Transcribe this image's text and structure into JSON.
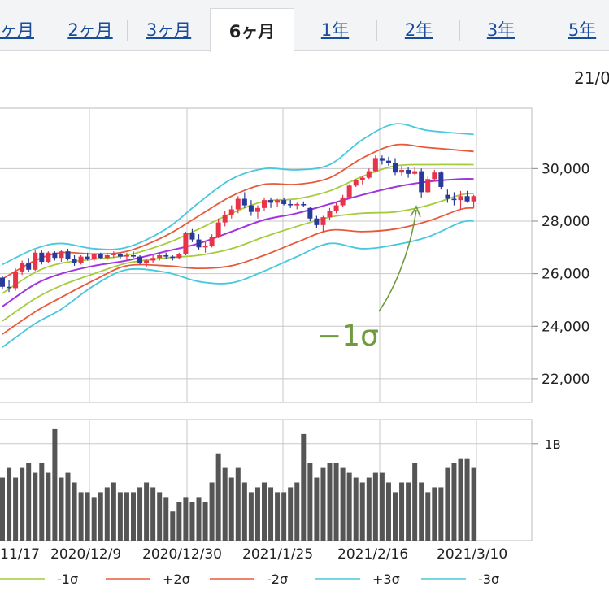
{
  "tabs": [
    {
      "label": "ヶ月",
      "active": false
    },
    {
      "label": "2ヶ月",
      "active": false
    },
    {
      "label": "3ヶ月",
      "active": false
    },
    {
      "label": "6ヶ月",
      "active": true
    },
    {
      "label": "1年",
      "active": false
    },
    {
      "label": "2年",
      "active": false
    },
    {
      "label": "3年",
      "active": false
    },
    {
      "label": "5年",
      "active": false
    }
  ],
  "date_label": "21/0",
  "annotation": {
    "text": "−1σ",
    "color": "#6f9a3e"
  },
  "colors": {
    "up": "#e8334a",
    "down": "#2a3a9a",
    "mid": "#a035e0",
    "sigma1": "#a5cc3c",
    "sigma2": "#e8593a",
    "sigma3": "#48c8dc",
    "volume": "#555555"
  },
  "legend": [
    {
      "label": "-1σ",
      "color": "#a5cc3c"
    },
    {
      "label": "+2σ",
      "color": "#e8593a"
    },
    {
      "label": "-2σ",
      "color": "#e8593a"
    },
    {
      "label": "+3σ",
      "color": "#48c8dc"
    },
    {
      "label": "-3σ",
      "color": "#48c8dc"
    }
  ],
  "chart_data": [
    {
      "type": "candlestick",
      "title": "",
      "x_ticks": [
        "11/17",
        "2020/12/9",
        "2020/12/30",
        "2021/1/25",
        "2021/2/16",
        "2021/3/10"
      ],
      "y_ticks": [
        "30,000",
        "28,000",
        "26,000",
        "24,000",
        "22,000"
      ],
      "y_tick_values": [
        30000,
        28000,
        26000,
        24000,
        22000
      ],
      "ylim": [
        21100,
        32300
      ],
      "candles": [
        [
          25850,
          25900,
          25400,
          25500
        ],
        [
          25500,
          25750,
          25300,
          25450
        ],
        [
          25450,
          26200,
          25350,
          26050
        ],
        [
          26050,
          26500,
          25950,
          26400
        ],
        [
          26400,
          26600,
          26050,
          26150
        ],
        [
          26150,
          26900,
          26100,
          26800
        ],
        [
          26800,
          26900,
          26350,
          26450
        ],
        [
          26450,
          26850,
          26400,
          26800
        ],
        [
          26800,
          26850,
          26500,
          26600
        ],
        [
          26600,
          26900,
          26450,
          26850
        ],
        [
          26850,
          26950,
          26500,
          26550
        ],
        [
          26550,
          26700,
          26300,
          26400
        ],
        [
          26400,
          26700,
          26350,
          26650
        ],
        [
          26650,
          26800,
          26500,
          26550
        ],
        [
          26550,
          26800,
          26450,
          26750
        ],
        [
          26750,
          26800,
          26550,
          26600
        ],
        [
          26600,
          26800,
          26500,
          26700
        ],
        [
          26700,
          26850,
          26600,
          26750
        ],
        [
          26750,
          26800,
          26550,
          26650
        ],
        [
          26650,
          26800,
          26500,
          26700
        ],
        [
          26700,
          26850,
          26600,
          26650
        ],
        [
          26650,
          26700,
          26350,
          26400
        ],
        [
          26400,
          26550,
          26250,
          26500
        ],
        [
          26500,
          26700,
          26400,
          26600
        ],
        [
          26600,
          26750,
          26500,
          26700
        ],
        [
          26700,
          26800,
          26550,
          26650
        ],
        [
          26650,
          26700,
          26500,
          26600
        ],
        [
          26600,
          26800,
          26550,
          26750
        ],
        [
          26750,
          27600,
          26700,
          27550
        ],
        [
          27550,
          27700,
          27200,
          27300
        ],
        [
          27300,
          27500,
          26900,
          27000
        ],
        [
          27000,
          27200,
          26800,
          27050
        ],
        [
          27050,
          27500,
          27000,
          27400
        ],
        [
          27400,
          28100,
          27350,
          27950
        ],
        [
          27950,
          28400,
          27800,
          28250
        ],
        [
          28250,
          28600,
          28100,
          28450
        ],
        [
          28450,
          28950,
          28300,
          28850
        ],
        [
          28850,
          29100,
          28500,
          28600
        ],
        [
          28600,
          28800,
          28200,
          28350
        ],
        [
          28350,
          28600,
          28100,
          28500
        ],
        [
          28500,
          28900,
          28400,
          28800
        ],
        [
          28800,
          28900,
          28500,
          28700
        ],
        [
          28700,
          28850,
          28550,
          28800
        ],
        [
          28800,
          28900,
          28600,
          28650
        ],
        [
          28650,
          28800,
          28500,
          28600
        ],
        [
          28600,
          28700,
          28450,
          28650
        ],
        [
          28650,
          28750,
          28550,
          28600
        ],
        [
          28500,
          28550,
          28000,
          28100
        ],
        [
          28100,
          28200,
          27750,
          27850
        ],
        [
          27850,
          28200,
          27600,
          28150
        ],
        [
          28150,
          28500,
          28050,
          28400
        ],
        [
          28400,
          28700,
          28300,
          28600
        ],
        [
          28600,
          29000,
          28550,
          28900
        ],
        [
          28900,
          29400,
          28850,
          29350
        ],
        [
          29350,
          29600,
          29300,
          29550
        ],
        [
          29550,
          29700,
          29400,
          29650
        ],
        [
          29650,
          30000,
          29600,
          29900
        ],
        [
          29900,
          30500,
          29850,
          30400
        ],
        [
          30400,
          30500,
          30150,
          30300
        ],
        [
          30300,
          30450,
          30100,
          30200
        ],
        [
          30200,
          30400,
          29750,
          29850
        ],
        [
          29850,
          30100,
          29700,
          29950
        ],
        [
          29950,
          30050,
          29650,
          29800
        ],
        [
          29800,
          30050,
          29750,
          29900
        ],
        [
          29900,
          30000,
          28900,
          29100
        ],
        [
          29100,
          29700,
          29050,
          29600
        ],
        [
          29600,
          29950,
          29500,
          29850
        ],
        [
          29850,
          29900,
          29200,
          29300
        ],
        [
          29000,
          29200,
          28700,
          28850
        ],
        [
          28850,
          29100,
          28600,
          28800
        ],
        [
          28800,
          29150,
          28450,
          28950
        ],
        [
          28950,
          29150,
          28700,
          28750
        ],
        [
          28750,
          29000,
          28500,
          28950
        ]
      ],
      "bands": {
        "mid": [
          [
            0,
            24750
          ],
          [
            5,
            25600
          ],
          [
            9,
            26000
          ],
          [
            14,
            26300
          ],
          [
            19,
            26500
          ],
          [
            25,
            26850
          ],
          [
            30,
            27150
          ],
          [
            35,
            27600
          ],
          [
            40,
            28050
          ],
          [
            45,
            28300
          ],
          [
            50,
            28650
          ],
          [
            55,
            29000
          ],
          [
            60,
            29300
          ],
          [
            65,
            29500
          ],
          [
            70,
            29600
          ],
          [
            72,
            29600
          ]
        ],
        "plus1": [
          [
            0,
            25250
          ],
          [
            5,
            26050
          ],
          [
            9,
            26400
          ],
          [
            14,
            26550
          ],
          [
            19,
            26700
          ],
          [
            25,
            27150
          ],
          [
            30,
            27700
          ],
          [
            35,
            28300
          ],
          [
            40,
            28750
          ],
          [
            45,
            28850
          ],
          [
            50,
            29150
          ],
          [
            55,
            29700
          ],
          [
            60,
            30100
          ],
          [
            65,
            30150
          ],
          [
            72,
            30150
          ]
        ],
        "minus1": [
          [
            0,
            24200
          ],
          [
            5,
            25050
          ],
          [
            9,
            25550
          ],
          [
            14,
            26000
          ],
          [
            19,
            26400
          ],
          [
            25,
            26600
          ],
          [
            30,
            26700
          ],
          [
            35,
            26950
          ],
          [
            40,
            27400
          ],
          [
            45,
            27800
          ],
          [
            50,
            28150
          ],
          [
            55,
            28300
          ],
          [
            60,
            28350
          ],
          [
            65,
            28600
          ],
          [
            70,
            29000
          ],
          [
            72,
            29050
          ]
        ],
        "plus2": [
          [
            0,
            25800
          ],
          [
            5,
            26500
          ],
          [
            9,
            26800
          ],
          [
            14,
            26750
          ],
          [
            19,
            26850
          ],
          [
            25,
            27450
          ],
          [
            30,
            28200
          ],
          [
            35,
            28950
          ],
          [
            40,
            29400
          ],
          [
            45,
            29400
          ],
          [
            50,
            29650
          ],
          [
            55,
            30400
          ],
          [
            60,
            30900
          ],
          [
            65,
            30800
          ],
          [
            72,
            30650
          ]
        ],
        "minus2": [
          [
            0,
            23700
          ],
          [
            5,
            24550
          ],
          [
            9,
            25100
          ],
          [
            14,
            25750
          ],
          [
            19,
            26300
          ],
          [
            25,
            26300
          ],
          [
            30,
            26200
          ],
          [
            35,
            26300
          ],
          [
            40,
            26700
          ],
          [
            45,
            27200
          ],
          [
            50,
            27650
          ],
          [
            55,
            27600
          ],
          [
            60,
            27700
          ],
          [
            65,
            28000
          ],
          [
            70,
            28450
          ],
          [
            72,
            28500
          ]
        ],
        "plus3": [
          [
            0,
            26350
          ],
          [
            5,
            26950
          ],
          [
            9,
            27150
          ],
          [
            14,
            26950
          ],
          [
            19,
            27000
          ],
          [
            25,
            27700
          ],
          [
            30,
            28700
          ],
          [
            35,
            29600
          ],
          [
            40,
            30000
          ],
          [
            45,
            29950
          ],
          [
            50,
            30150
          ],
          [
            55,
            31100
          ],
          [
            60,
            31700
          ],
          [
            65,
            31450
          ],
          [
            72,
            31300
          ]
        ],
        "minus3": [
          [
            0,
            23200
          ],
          [
            5,
            24100
          ],
          [
            9,
            24650
          ],
          [
            14,
            25550
          ],
          [
            19,
            26150
          ],
          [
            25,
            26050
          ],
          [
            30,
            25700
          ],
          [
            35,
            25650
          ],
          [
            40,
            26100
          ],
          [
            45,
            26650
          ],
          [
            50,
            27150
          ],
          [
            55,
            26950
          ],
          [
            60,
            27100
          ],
          [
            65,
            27400
          ],
          [
            70,
            27950
          ],
          [
            72,
            28000
          ]
        ]
      }
    },
    {
      "type": "bar",
      "title": "",
      "y_ticks": [
        "1B"
      ],
      "y_tick_values": [
        1.0
      ],
      "ylim": [
        0,
        1.25
      ],
      "values": [
        0.65,
        0.75,
        0.65,
        0.75,
        0.8,
        0.7,
        0.8,
        0.7,
        1.15,
        0.65,
        0.7,
        0.6,
        0.5,
        0.5,
        0.45,
        0.5,
        0.55,
        0.6,
        0.5,
        0.5,
        0.5,
        0.55,
        0.6,
        0.55,
        0.5,
        0.45,
        0.3,
        0.4,
        0.45,
        0.4,
        0.45,
        0.4,
        0.6,
        0.9,
        0.75,
        0.65,
        0.75,
        0.6,
        0.5,
        0.55,
        0.6,
        0.55,
        0.5,
        0.5,
        0.55,
        0.6,
        1.1,
        0.8,
        0.65,
        0.75,
        0.8,
        0.8,
        0.75,
        0.7,
        0.65,
        0.6,
        0.65,
        0.7,
        0.7,
        0.6,
        0.5,
        0.6,
        0.6,
        0.8,
        0.6,
        0.5,
        0.55,
        0.55,
        0.75,
        0.8,
        0.85,
        0.85,
        0.75
      ]
    }
  ]
}
